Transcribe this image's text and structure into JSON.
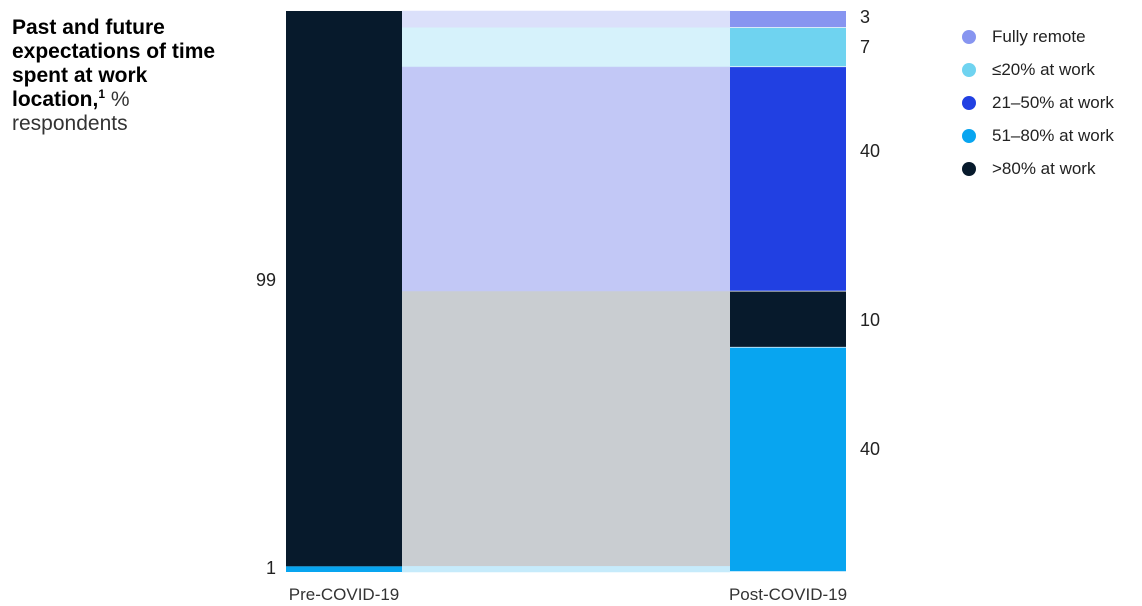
{
  "title": {
    "bold_text": "Past and future expectations of time spent at work location,",
    "footnote_marker": "1",
    "unit": "%",
    "subtitle": "respondents"
  },
  "chart_data": {
    "type": "alluvial",
    "stages": [
      "Pre-COVID-19",
      "Post-COVID-19"
    ],
    "categories": [
      "Fully remote",
      "≤20% at work",
      "21–50% at work",
      ">80% at work",
      "51–80% at work"
    ],
    "legend": [
      {
        "name": "Fully remote",
        "color": "#8795f0"
      },
      {
        "name": "≤20% at work",
        "color": "#6fd3f0"
      },
      {
        "name": "21–50% at work",
        "color": "#2140e2"
      },
      {
        "name": "51–80% at work",
        "color": "#08a5f0"
      },
      {
        "name": ">80% at work",
        "color": "#071a2c"
      }
    ],
    "pre_covid": [
      {
        "category": ">80% at work",
        "value": 99,
        "label": "99",
        "color": "#071a2c"
      },
      {
        "category": "51–80% at work",
        "value": 1,
        "label": "1",
        "color": "#08a5f0"
      }
    ],
    "post_covid": [
      {
        "category": "Fully remote",
        "value": 3,
        "label": "3",
        "color": "#8795f0"
      },
      {
        "category": "≤20% at work",
        "value": 7,
        "label": "7",
        "color": "#6fd3f0"
      },
      {
        "category": "21–50% at work",
        "value": 40,
        "label": "40",
        "color": "#2140e2"
      },
      {
        "category": ">80% at work",
        "value": 10,
        "label": "10",
        "color": "#071a2c"
      },
      {
        "category": "51–80% at work",
        "value": 40,
        "label": "40",
        "color": "#08a5f0"
      }
    ],
    "flows": [
      {
        "from": ">80% at work",
        "to": "Fully remote",
        "value": 3,
        "color": "#dbe0fa"
      },
      {
        "from": ">80% at work",
        "to": "≤20% at work",
        "value": 7,
        "color": "#d6f2fb"
      },
      {
        "from": ">80% at work",
        "to": "21–50% at work",
        "value": 40,
        "color": "#c2c8f6"
      },
      {
        "from": ">80% at work",
        "to": ">80% at work",
        "value": 10,
        "color": "#c9cdd1"
      },
      {
        "from": ">80% at work",
        "to": "51–80% at work",
        "value": 39,
        "color": "#c9cdd1"
      },
      {
        "from": "51–80% at work",
        "to": "51–80% at work",
        "value": 1,
        "color": "#c6ebfb"
      }
    ],
    "flow_band_colors": {
      "lower_band": "#c6ebfb"
    }
  }
}
